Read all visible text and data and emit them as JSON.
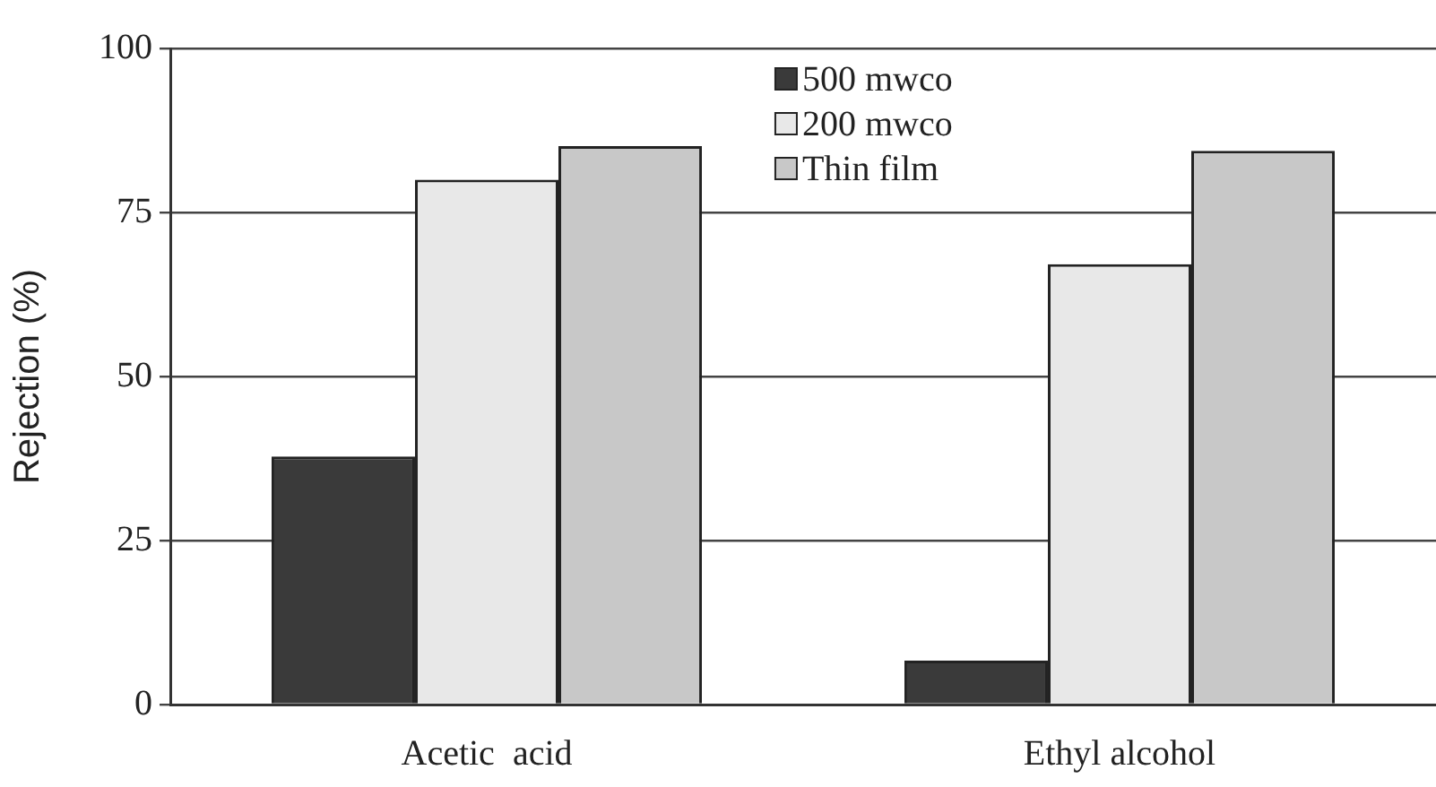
{
  "chart_data": {
    "type": "bar",
    "ylabel": "Rejection (%)",
    "categories": [
      "Acetic  acid",
      "Ethyl alcohol"
    ],
    "series": [
      {
        "name": "500 mwco",
        "color": "#3a3a3a",
        "values": [
          37.8,
          6.7
        ]
      },
      {
        "name": "200 mwco",
        "color": "#e8e8e8",
        "values": [
          80,
          67.1
        ]
      },
      {
        "name": "Thin film",
        "color": "#c8c8c8",
        "values": [
          85.1,
          84.4
        ]
      }
    ],
    "ylim": [
      0,
      100
    ],
    "yticks": [
      0,
      25,
      50,
      75,
      100
    ],
    "grid": "y",
    "legend": "top"
  }
}
